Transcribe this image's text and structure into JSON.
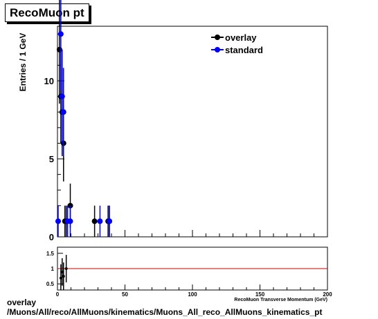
{
  "title": "RecoMuon pt",
  "footer": {
    "line1": "overlay",
    "line2": "/Muons/All/reco/AllMuons/kinematics/Muons_All_reco_AllMuons_kinematics_pt"
  },
  "colors": {
    "overlay": "#000000",
    "standard": "#0000ff",
    "ratio_line": "#cc0000"
  },
  "chart_data": [
    {
      "type": "scatter",
      "xlabel": "RecoMuon Transverse Momentum (GeV)",
      "ylabel": "Entries / 1 GeV",
      "xlim": [
        0,
        200
      ],
      "ylim": [
        0,
        13.5
      ],
      "x_ticks": [
        0,
        50,
        100,
        150,
        200
      ],
      "y_ticks": [
        0,
        5,
        10
      ],
      "legend_position": "top-right",
      "series": [
        {
          "name": "overlay",
          "color": "#000000",
          "x": [
            1.5,
            2.5,
            3.5,
            4.5,
            5.5,
            6.5,
            9.5,
            27.5,
            37.5,
            38.5
          ],
          "y": [
            12,
            9,
            8,
            6,
            1,
            1,
            2,
            1,
            1,
            1
          ]
        },
        {
          "name": "standard",
          "color": "#0000ff",
          "x": [
            0.5,
            2.5,
            3.5,
            4.5,
            7.5,
            9.5,
            31.5,
            38.5
          ],
          "y": [
            1,
            13,
            9,
            8,
            1,
            1,
            1,
            1
          ]
        }
      ]
    },
    {
      "type": "scatter",
      "x_ticks": [
        0,
        50,
        100,
        150,
        200
      ],
      "y_ticks": [
        0.5,
        1,
        1.5
      ],
      "xlim": [
        0,
        200
      ],
      "ylim": [
        0.3,
        1.7
      ],
      "reference_line": 1,
      "series": [
        {
          "name": "ratio",
          "x": [
            2.5,
            3.5,
            4.5,
            6.5
          ],
          "y": [
            0.69,
            0.89,
            0.75,
            1.0
          ]
        }
      ]
    }
  ]
}
